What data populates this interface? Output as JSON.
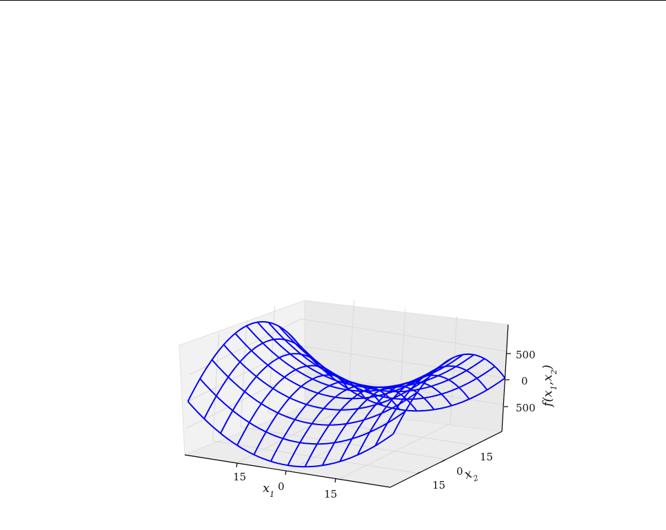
{
  "chart_data": {
    "type": "surface-wireframe",
    "function": "saddle",
    "wire_color": "#0000ff",
    "pane_color": "#f2f2f2",
    "grid_color": "#d9d9d9",
    "grid": true,
    "x1": {
      "label": "x_1",
      "ticks": [
        "15",
        "0",
        "15"
      ],
      "range": [
        -25,
        25
      ]
    },
    "x2": {
      "label": "x_2",
      "ticks": [
        "15",
        "0",
        "15"
      ],
      "range": [
        -25,
        25
      ]
    },
    "z": {
      "label": "f(x_1,x_2)",
      "ticks": [
        "500",
        "0",
        "500"
      ],
      "range": [
        -700,
        700
      ]
    },
    "mesh": {
      "x1_samples": 13,
      "x2_samples": 11,
      "z_scale_note_only": false
    },
    "surface_values_at_corners": {
      "x1_min_x2_min": 0,
      "x1_max_x2_max": 0,
      "x1_min_x2_max": 0,
      "x1_max_x2_min": 0
    }
  }
}
